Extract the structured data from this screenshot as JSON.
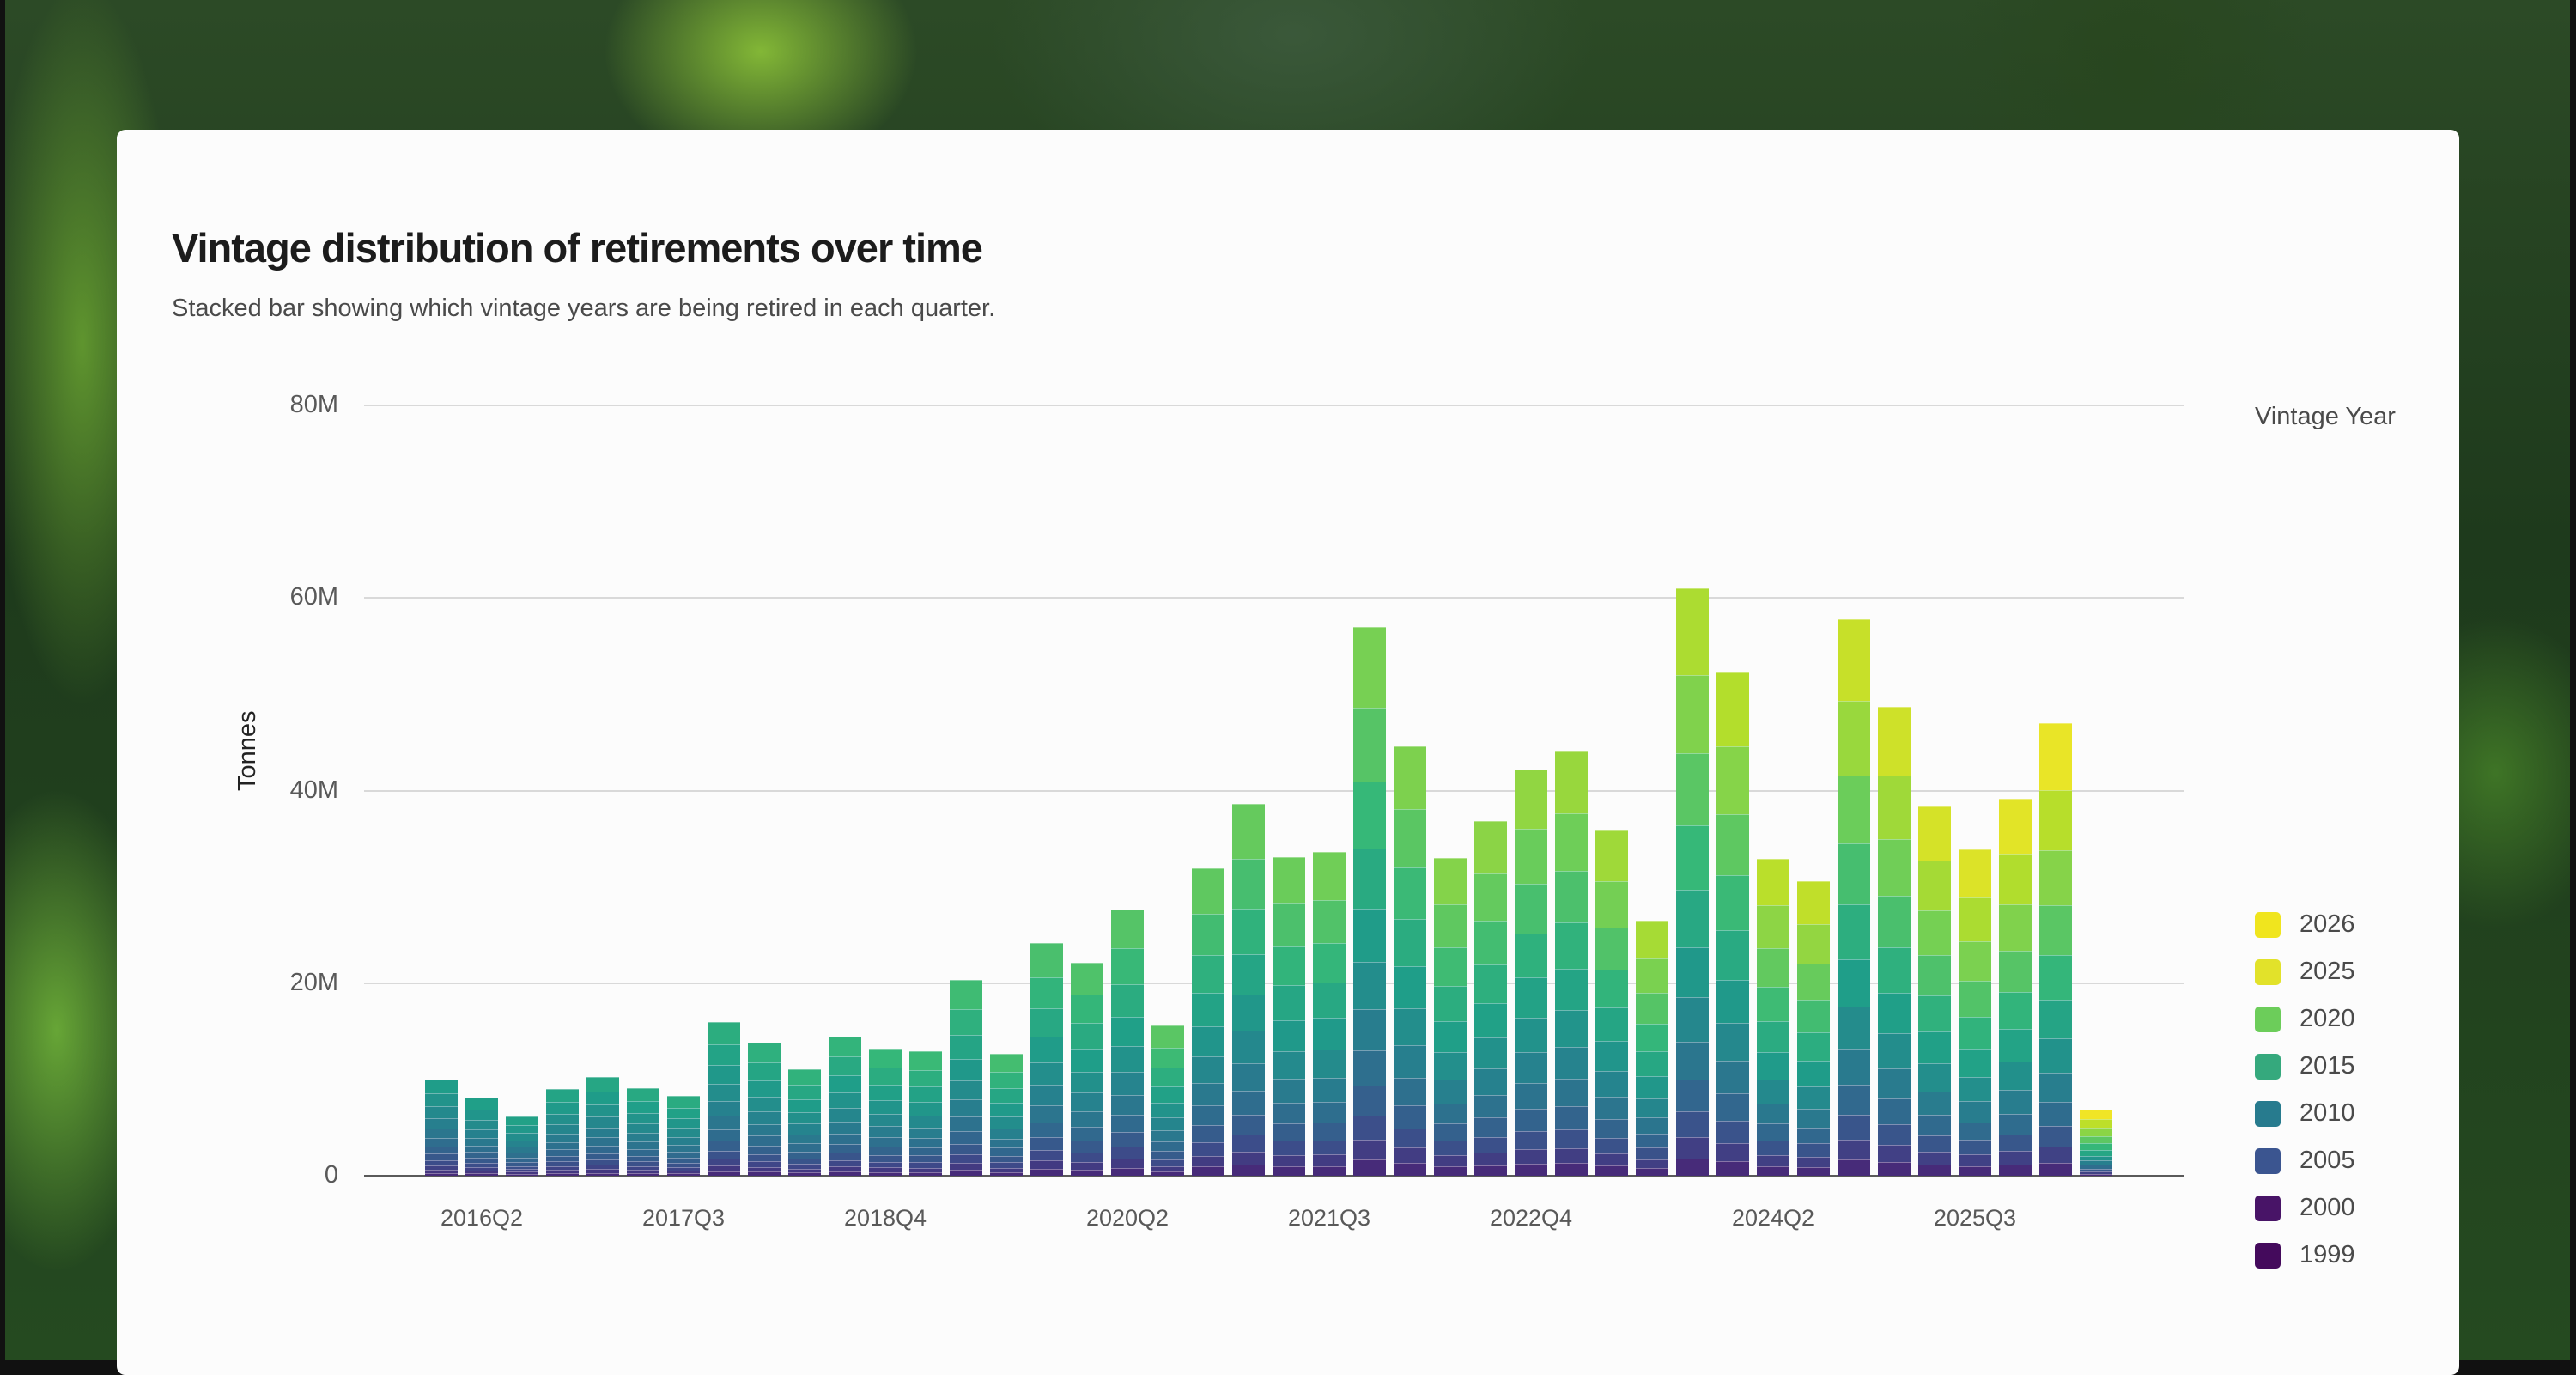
{
  "card": {
    "title": "Vintage distribution of retirements over time",
    "subtitle": "Stacked bar showing which vintage years are being retired in each quarter."
  },
  "legend": {
    "title": "Vintage Year",
    "items": [
      {
        "label": "2026",
        "color": "#f0e51e"
      },
      {
        "label": "2025",
        "color": "#e2e22a"
      },
      {
        "label": "2020",
        "color": "#6ccd5a"
      },
      {
        "label": "2015",
        "color": "#35a97d"
      },
      {
        "label": "2010",
        "color": "#277b8e"
      },
      {
        "label": "2005",
        "color": "#3b5590"
      },
      {
        "label": "2000",
        "color": "#481467"
      },
      {
        "label": "1999",
        "color": "#440a5c"
      }
    ]
  },
  "chart_data": {
    "type": "bar",
    "stacked": true,
    "title": "Vintage distribution of retirements over time",
    "subtitle": "Stacked bar showing which vintage years are being retired in each quarter.",
    "xlabel": "",
    "ylabel": "Tonnes",
    "ylim": [
      0,
      80000000
    ],
    "yticks": [
      {
        "value": 0,
        "label": "0"
      },
      {
        "value": 20000000,
        "label": "20M"
      },
      {
        "value": 40000000,
        "label": "40M"
      },
      {
        "value": 60000000,
        "label": "60M"
      },
      {
        "value": 80000000,
        "label": "80M"
      }
    ],
    "grid": true,
    "legend_position": "right",
    "legend_title": "Vintage Year",
    "color_scale": "viridis",
    "x_tick_labels": [
      {
        "index": 1,
        "label": "2016Q2"
      },
      {
        "index": 6,
        "label": "2017Q3"
      },
      {
        "index": 11,
        "label": "2018Q4"
      },
      {
        "index": 17,
        "label": "2020Q2"
      },
      {
        "index": 22,
        "label": "2021Q3"
      },
      {
        "index": 27,
        "label": "2022Q4"
      },
      {
        "index": 33,
        "label": "2024Q2"
      },
      {
        "index": 38,
        "label": "2025Q3"
      }
    ],
    "categories": [
      "2016Q1",
      "2016Q2",
      "2016Q3",
      "2016Q4",
      "2017Q1",
      "2017Q2",
      "2017Q3",
      "2017Q4",
      "2018Q1",
      "2018Q2",
      "2018Q3",
      "2018Q4",
      "2019Q1",
      "2019Q2",
      "2019Q3",
      "2019Q4",
      "2020Q1",
      "2020Q2",
      "2020Q3",
      "2020Q4",
      "2021Q1",
      "2021Q2",
      "2021Q3",
      "2021Q4",
      "2022Q1",
      "2022Q2",
      "2022Q3",
      "2022Q4",
      "2023Q1",
      "2023Q2",
      "2023Q3",
      "2023Q4",
      "2024Q1",
      "2024Q2",
      "2024Q3",
      "2024Q4",
      "2025Q1",
      "2025Q2",
      "2025Q3",
      "2025Q4",
      "2026Q1",
      "2026Q2"
    ],
    "totals_millions": [
      10.0,
      8.1,
      6.2,
      9.0,
      10.3,
      9.1,
      8.3,
      16.0,
      13.8,
      11.1,
      14.5,
      13.2,
      12.9,
      20.3,
      12.7,
      24.2,
      22.1,
      27.7,
      15.6,
      31.9,
      38.6,
      33.1,
      33.6,
      57.0,
      44.6,
      33.0,
      36.8,
      42.2,
      44.1,
      35.9,
      26.5,
      61.0,
      52.3,
      32.9,
      30.6,
      57.8,
      48.7,
      38.4,
      33.9,
      39.2,
      47.0,
      6.9
    ],
    "series_legend": [
      "2026",
      "2025",
      "2020",
      "2015",
      "2010",
      "2005",
      "2000",
      "1999"
    ]
  }
}
